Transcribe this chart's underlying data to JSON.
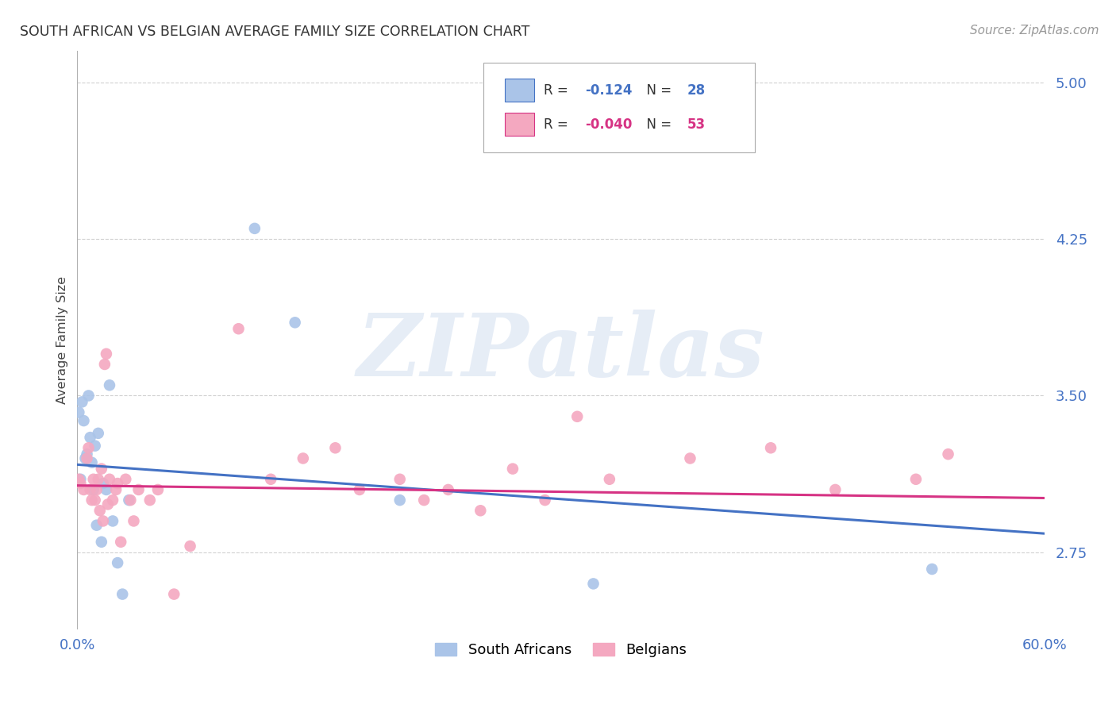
{
  "title": "SOUTH AFRICAN VS BELGIAN AVERAGE FAMILY SIZE CORRELATION CHART",
  "source": "Source: ZipAtlas.com",
  "ylabel": "Average Family Size",
  "yticks": [
    2.75,
    3.5,
    4.25,
    5.0
  ],
  "ytick_color": "#4472c4",
  "xlim": [
    0.0,
    0.6
  ],
  "ylim": [
    2.38,
    5.15
  ],
  "legend_bottom": [
    "South Africans",
    "Belgians"
  ],
  "sa_color": "#aac4e8",
  "sa_line_color": "#4472c4",
  "be_color": "#f4a8c0",
  "be_line_color": "#d63384",
  "background_color": "#ffffff",
  "grid_color": "#cccccc",
  "watermark_text": "ZIPatlas",
  "sa_line_x0": 0.0,
  "sa_line_x1": 0.6,
  "sa_line_y0": 3.17,
  "sa_line_y1": 2.84,
  "be_line_x0": 0.0,
  "be_line_x1": 0.6,
  "be_line_y0": 3.07,
  "be_line_y1": 3.01
}
